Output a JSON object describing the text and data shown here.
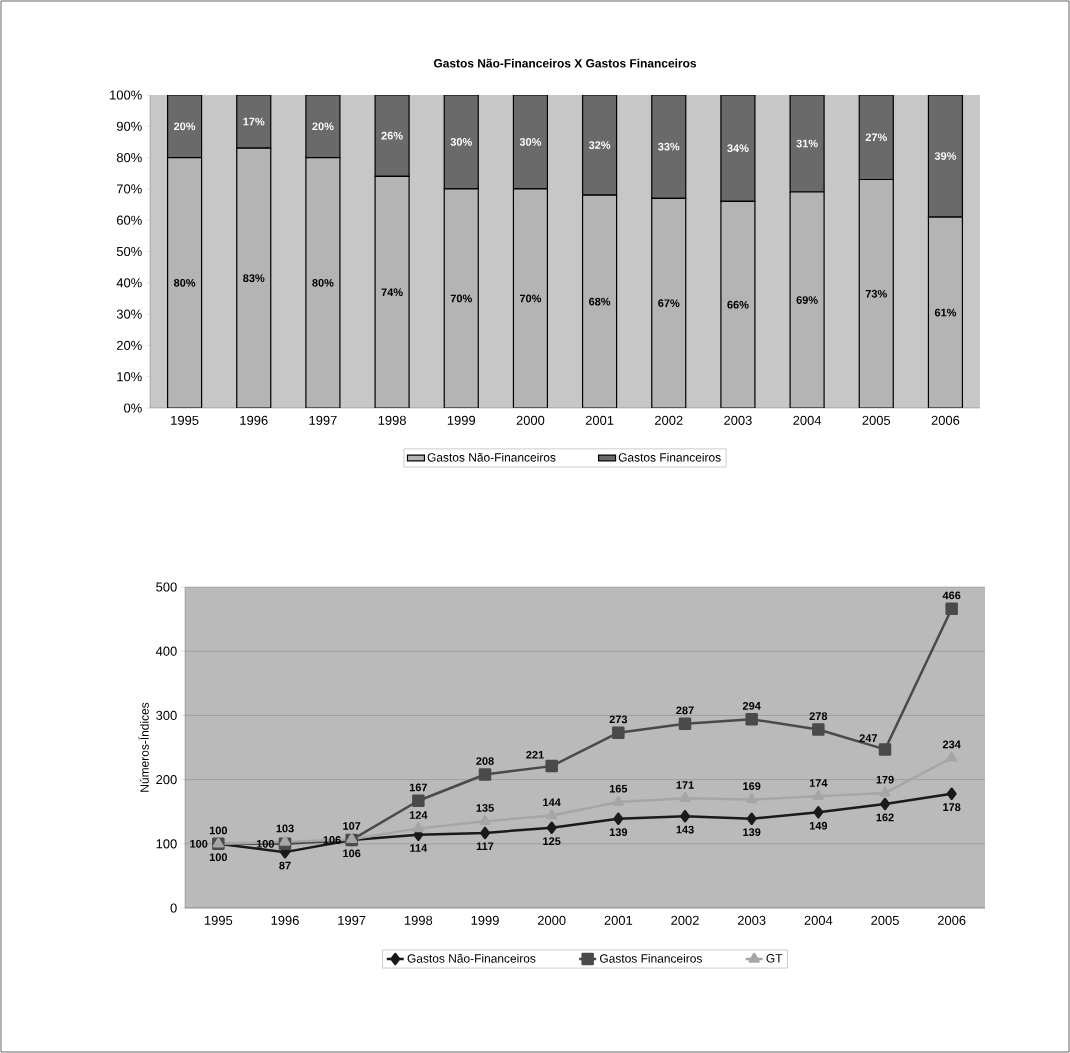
{
  "chart_data": [
    {
      "type": "bar",
      "title": "Gastos Não-Financeiros X Gastos Financeiros",
      "stacked": true,
      "legend": "bottom",
      "categories": [
        "1995",
        "1996",
        "1997",
        "1998",
        "1999",
        "2000",
        "2001",
        "2002",
        "2003",
        "2004",
        "2005",
        "2006"
      ],
      "ylim": [
        0,
        100
      ],
      "yticks": [
        {
          "value": 0,
          "label": "0%"
        },
        {
          "value": 10,
          "label": "10%"
        },
        {
          "value": 20,
          "label": "20%"
        },
        {
          "value": 30,
          "label": "30%"
        },
        {
          "value": 40,
          "label": "40%"
        },
        {
          "value": 50,
          "label": "50%"
        },
        {
          "value": 60,
          "label": "60%"
        },
        {
          "value": 70,
          "label": "70%"
        },
        {
          "value": 80,
          "label": "80%"
        },
        {
          "value": 90,
          "label": "90%"
        },
        {
          "value": 100,
          "label": "100%"
        }
      ],
      "series": [
        {
          "name": "Gastos Não-Financeiros",
          "color": "#b4b4b4",
          "values": [
            80,
            83,
            80,
            74,
            70,
            70,
            68,
            67,
            66,
            69,
            73,
            61
          ],
          "value_labels": [
            "80%",
            "83%",
            "80%",
            "74%",
            "70%",
            "70%",
            "68%",
            "67%",
            "66%",
            "69%",
            "73%",
            "61%"
          ]
        },
        {
          "name": "Gastos Financeiros",
          "color": "#6a6a6a",
          "values": [
            20,
            17,
            20,
            26,
            30,
            30,
            32,
            33,
            34,
            31,
            27,
            39
          ],
          "value_labels": [
            "20%",
            "17%",
            "20%",
            "26%",
            "30%",
            "30%",
            "32%",
            "33%",
            "34%",
            "31%",
            "27%",
            "39%"
          ]
        }
      ]
    },
    {
      "type": "line",
      "ylabel": "Números-Índices",
      "legend": "bottom",
      "grid": "y",
      "line_style": "solid",
      "categories": [
        "1995",
        "1996",
        "1997",
        "1998",
        "1999",
        "2000",
        "2001",
        "2002",
        "2003",
        "2004",
        "2005",
        "2006"
      ],
      "ylim": [
        0,
        500
      ],
      "yticks": [
        0,
        100,
        200,
        300,
        400,
        500
      ],
      "data_labels": true,
      "series": [
        {
          "name": "Gastos Não-Financeiros",
          "color": "#1a1a1a",
          "marker": "diamond",
          "values": [
            100,
            87,
            106,
            114,
            117,
            125,
            139,
            143,
            139,
            149,
            162,
            178
          ]
        },
        {
          "name": "Gastos Financeiros",
          "color": "#4a4a4a",
          "marker": "square",
          "values": [
            100,
            100,
            106,
            167,
            208,
            221,
            273,
            287,
            294,
            278,
            247,
            466
          ]
        },
        {
          "name": "GT",
          "color": "#a6a6a6",
          "marker": "triangle",
          "values": [
            100,
            103,
            107,
            124,
            135,
            144,
            165,
            171,
            169,
            174,
            179,
            234
          ]
        }
      ]
    }
  ]
}
